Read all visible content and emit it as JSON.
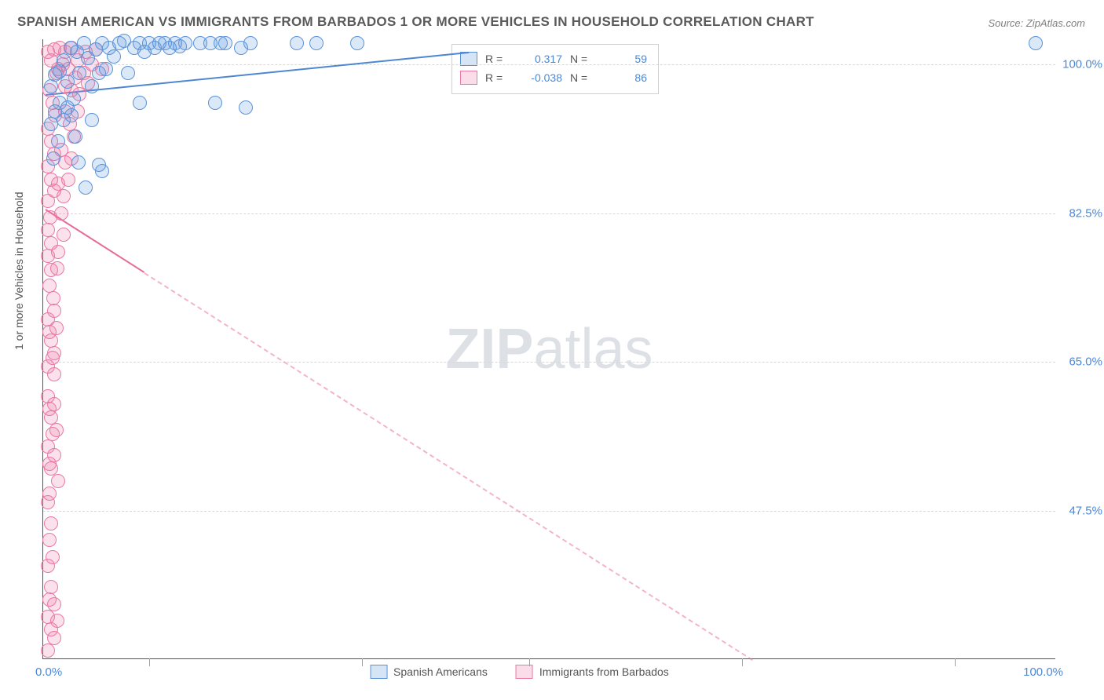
{
  "title": "SPANISH AMERICAN VS IMMIGRANTS FROM BARBADOS 1 OR MORE VEHICLES IN HOUSEHOLD CORRELATION CHART",
  "source": "Source: ZipAtlas.com",
  "watermark_zip": "ZIP",
  "watermark_atlas": "atlas",
  "chart": {
    "type": "scatter",
    "background_color": "#ffffff",
    "grid_color": "#d8d8d8",
    "axis_color": "#555555",
    "tick_color": "#4a88d9",
    "xlim": [
      0,
      100
    ],
    "ylim": [
      30,
      103
    ],
    "y_ticks": [
      {
        "value": 100.0,
        "label": "100.0%"
      },
      {
        "value": 82.5,
        "label": "82.5%"
      },
      {
        "value": 65.0,
        "label": "65.0%"
      },
      {
        "value": 47.5,
        "label": "47.5%"
      }
    ],
    "x_tick_positions": [
      10.5,
      31.5,
      48,
      69,
      90
    ],
    "x_origin_label": "0.0%",
    "x_max_label": "100.0%",
    "y_axis_label": "1 or more Vehicles in Household"
  },
  "legend_stats": {
    "series1": {
      "r_label": "R =",
      "r": "0.317",
      "n_label": "N =",
      "n": "59"
    },
    "series2": {
      "r_label": "R =",
      "r": "-0.038",
      "n_label": "N =",
      "n": "86"
    }
  },
  "bottom_legend": {
    "series1": "Spanish Americans",
    "series2": "Immigrants from Barbados"
  },
  "series": {
    "blue": {
      "color_fill": "rgba(93,151,221,0.22)",
      "color_stroke": "#5b93d9",
      "trend": {
        "x1": 0.2,
        "y1": 96.5,
        "x2": 42,
        "y2": 101.5,
        "solid_fraction": 1.0,
        "color": "#4f86d2"
      },
      "points": [
        [
          0.8,
          97.5
        ],
        [
          1.2,
          98.8
        ],
        [
          1.6,
          99.2
        ],
        [
          2.0,
          100.5
        ],
        [
          2.4,
          98.0
        ],
        [
          2.7,
          102.0
        ],
        [
          3.0,
          96.0
        ],
        [
          3.3,
          101.5
        ],
        [
          3.6,
          99.0
        ],
        [
          4.0,
          102.5
        ],
        [
          4.4,
          100.8
        ],
        [
          4.8,
          97.5
        ],
        [
          5.2,
          101.8
        ],
        [
          5.5,
          99.0
        ],
        [
          5.8,
          102.5
        ],
        [
          6.2,
          99.5
        ],
        [
          6.5,
          102.0
        ],
        [
          7.0,
          101.0
        ],
        [
          7.5,
          102.5
        ],
        [
          8.0,
          102.8
        ],
        [
          8.4,
          99.0
        ],
        [
          9.0,
          102.0
        ],
        [
          9.5,
          102.5
        ],
        [
          10.0,
          101.5
        ],
        [
          10.5,
          102.5
        ],
        [
          11.0,
          102.0
        ],
        [
          11.5,
          102.5
        ],
        [
          12.0,
          102.5
        ],
        [
          12.5,
          102.0
        ],
        [
          13.0,
          102.5
        ],
        [
          13.5,
          102.2
        ],
        [
          14.0,
          102.5
        ],
        [
          15.5,
          102.5
        ],
        [
          16.5,
          102.5
        ],
        [
          17.5,
          102.5
        ],
        [
          18.0,
          102.5
        ],
        [
          19.5,
          102.0
        ],
        [
          20.5,
          102.5
        ],
        [
          25.0,
          102.5
        ],
        [
          27.0,
          102.5
        ],
        [
          31.0,
          102.5
        ],
        [
          3.5,
          88.5
        ],
        [
          5.5,
          88.2
        ],
        [
          5.8,
          87.5
        ],
        [
          9.5,
          95.5
        ],
        [
          0.8,
          93.0
        ],
        [
          1.2,
          94.5
        ],
        [
          1.6,
          95.5
        ],
        [
          2.0,
          93.5
        ],
        [
          2.4,
          95.0
        ],
        [
          2.8,
          94.0
        ],
        [
          3.2,
          91.5
        ],
        [
          4.2,
          85.5
        ],
        [
          98.0,
          102.5
        ],
        [
          1.5,
          91.0
        ],
        [
          1.0,
          89.0
        ],
        [
          17.0,
          95.5
        ],
        [
          20.0,
          95.0
        ],
        [
          4.8,
          93.5
        ]
      ]
    },
    "pink": {
      "color_fill": "rgba(236,120,162,0.22)",
      "color_stroke": "#ea79a3",
      "trend": {
        "x1": 0.2,
        "y1": 83.0,
        "x2": 70,
        "y2": 30,
        "solid_fraction": 0.14,
        "color": "#e86b97"
      },
      "points": [
        [
          0.5,
          101.5
        ],
        [
          0.8,
          100.5
        ],
        [
          1.1,
          101.8
        ],
        [
          1.3,
          99.0
        ],
        [
          1.6,
          102.0
        ],
        [
          1.9,
          100.0
        ],
        [
          2.2,
          101.5
        ],
        [
          2.5,
          99.5
        ],
        [
          0.6,
          97.0
        ],
        [
          0.9,
          95.5
        ],
        [
          1.2,
          94.0
        ],
        [
          0.5,
          92.5
        ],
        [
          0.8,
          91.0
        ],
        [
          1.1,
          89.5
        ],
        [
          0.5,
          88.0
        ],
        [
          0.8,
          86.5
        ],
        [
          1.1,
          85.2
        ],
        [
          0.5,
          84.0
        ],
        [
          0.7,
          82.0
        ],
        [
          0.5,
          80.5
        ],
        [
          0.8,
          79.0
        ],
        [
          0.5,
          77.5
        ],
        [
          1.0,
          72.5
        ],
        [
          0.8,
          75.8
        ],
        [
          0.5,
          70.0
        ],
        [
          0.8,
          67.5
        ],
        [
          0.5,
          64.5
        ],
        [
          1.1,
          63.5
        ],
        [
          0.5,
          61.0
        ],
        [
          0.8,
          58.5
        ],
        [
          0.5,
          55.0
        ],
        [
          0.8,
          52.5
        ],
        [
          1.5,
          51.0
        ],
        [
          0.5,
          48.5
        ],
        [
          0.8,
          46.0
        ],
        [
          0.5,
          41.0
        ],
        [
          0.8,
          38.5
        ],
        [
          1.1,
          36.5
        ],
        [
          0.5,
          35.0
        ],
        [
          0.8,
          33.5
        ],
        [
          1.1,
          32.5
        ],
        [
          0.5,
          31.0
        ],
        [
          2.8,
          97.0
        ],
        [
          3.2,
          98.5
        ],
        [
          3.6,
          96.5
        ],
        [
          4.0,
          99.0
        ],
        [
          4.4,
          97.8
        ],
        [
          2.2,
          94.5
        ],
        [
          2.6,
          93.0
        ],
        [
          1.8,
          90.0
        ],
        [
          2.2,
          88.5
        ],
        [
          1.5,
          86.0
        ],
        [
          2.0,
          84.5
        ],
        [
          2.2,
          97.5
        ],
        [
          1.5,
          99.5
        ],
        [
          2.8,
          102.0
        ],
        [
          3.4,
          100.5
        ],
        [
          4.2,
          101.5
        ],
        [
          4.8,
          100.0
        ],
        [
          5.2,
          101.8
        ],
        [
          5.8,
          99.5
        ],
        [
          1.8,
          82.5
        ],
        [
          0.6,
          74.0
        ],
        [
          1.4,
          76.0
        ],
        [
          0.6,
          68.5
        ],
        [
          0.9,
          65.5
        ],
        [
          0.6,
          59.5
        ],
        [
          0.9,
          56.5
        ],
        [
          0.6,
          53.0
        ],
        [
          0.6,
          49.5
        ],
        [
          0.6,
          44.0
        ],
        [
          0.9,
          42.0
        ],
        [
          0.6,
          37.0
        ],
        [
          1.4,
          34.5
        ],
        [
          2.5,
          86.5
        ],
        [
          2.8,
          89.0
        ],
        [
          3.0,
          91.5
        ],
        [
          3.4,
          94.5
        ],
        [
          2.0,
          80.0
        ],
        [
          1.5,
          78.0
        ],
        [
          1.1,
          71.0
        ],
        [
          1.3,
          69.0
        ],
        [
          1.1,
          66.0
        ],
        [
          1.1,
          60.0
        ],
        [
          1.3,
          57.0
        ],
        [
          1.1,
          54.0
        ]
      ]
    }
  }
}
